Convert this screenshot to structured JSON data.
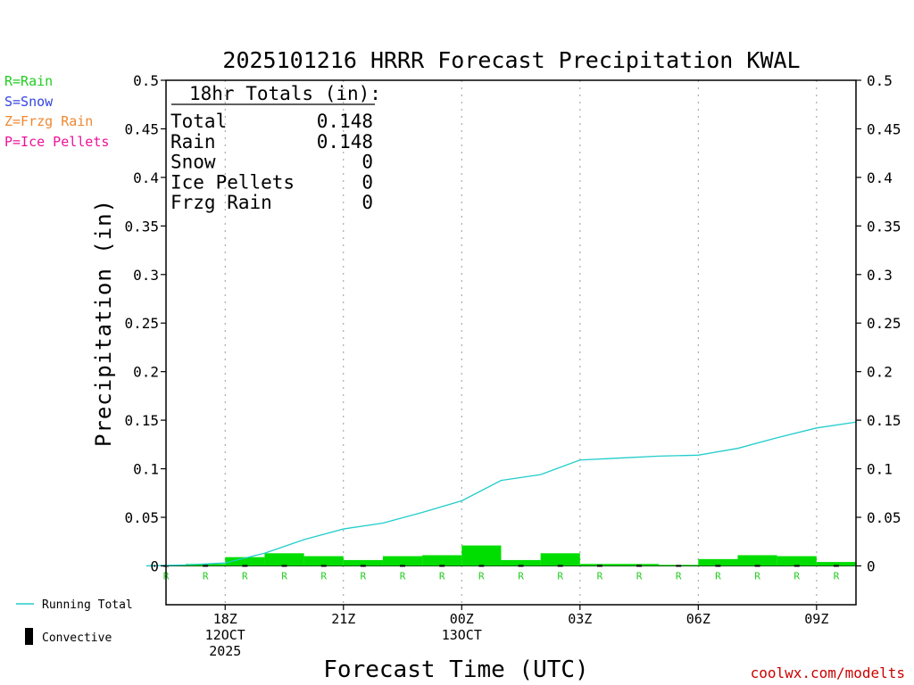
{
  "title": "2025101216 HRRR Forecast Precipitation KWAL",
  "xlabel": "Forecast Time (UTC)",
  "ylabel": "Precipitation (in)",
  "credit": "coolwx.com/modelts",
  "type_legend": [
    {
      "label": "R=Rain",
      "color": "#22cc22"
    },
    {
      "label": "S=Snow",
      "color": "#3344dd"
    },
    {
      "label": "Z=Frzg Rain",
      "color": "#ee8833"
    },
    {
      "label": "P=Ice Pellets",
      "color": "#ee1199"
    }
  ],
  "series_legend": {
    "running_total": "Running Total",
    "convective": "Convective"
  },
  "totals_box": {
    "header": "18hr Totals (in):",
    "rows": [
      {
        "label": "Total",
        "value": "0.148"
      },
      {
        "label": "Rain",
        "value": "0.148"
      },
      {
        "label": "Snow",
        "value": "0"
      },
      {
        "label": "Ice Pellets",
        "value": "0"
      },
      {
        "label": "Frzg Rain",
        "value": "0"
      }
    ]
  },
  "chart_data": {
    "type": "bar",
    "ylim": [
      -0.04,
      0.5
    ],
    "yticks": [
      0,
      0.05,
      0.1,
      0.15,
      0.2,
      0.25,
      0.3,
      0.35,
      0.4,
      0.45,
      0.5
    ],
    "ytick_labels": [
      "0",
      "0.05",
      "0.1",
      "0.15",
      "0.2",
      "0.25",
      "0.3",
      "0.35",
      "0.4",
      "0.45",
      "0.5"
    ],
    "xlim": [
      16.5,
      34
    ],
    "xticks": [
      {
        "x": 18,
        "lines": [
          "18Z",
          "12OCT",
          "2025"
        ]
      },
      {
        "x": 21,
        "lines": [
          "21Z"
        ]
      },
      {
        "x": 24,
        "lines": [
          "00Z",
          "13OCT"
        ]
      },
      {
        "x": 27,
        "lines": [
          "03Z"
        ]
      },
      {
        "x": 30,
        "lines": [
          "06Z"
        ]
      },
      {
        "x": 33,
        "lines": [
          "09Z"
        ]
      }
    ],
    "hours": [
      17,
      18,
      19,
      20,
      21,
      22,
      23,
      24,
      25,
      26,
      27,
      28,
      29,
      30,
      31,
      32,
      33,
      34
    ],
    "hourly_precip": [
      0.001,
      0.002,
      0.009,
      0.013,
      0.01,
      0.006,
      0.01,
      0.011,
      0.021,
      0.006,
      0.013,
      0.002,
      0.002,
      0.001,
      0.007,
      0.011,
      0.01,
      0.004
    ],
    "precip_type": [
      "R",
      "R",
      "R",
      "R",
      "R",
      "R",
      "R",
      "R",
      "R",
      "R",
      "R",
      "R",
      "R",
      "R",
      "R",
      "R",
      "R",
      "R"
    ],
    "running_total": [
      0.001,
      0.003,
      0.013,
      0.027,
      0.038,
      0.044,
      0.055,
      0.067,
      0.088,
      0.094,
      0.109,
      0.111,
      0.113,
      0.114,
      0.121,
      0.132,
      0.142,
      0.148
    ],
    "bar_color": "#00dd00",
    "running_total_color": "#22cccc",
    "convective_color": "#000000"
  }
}
